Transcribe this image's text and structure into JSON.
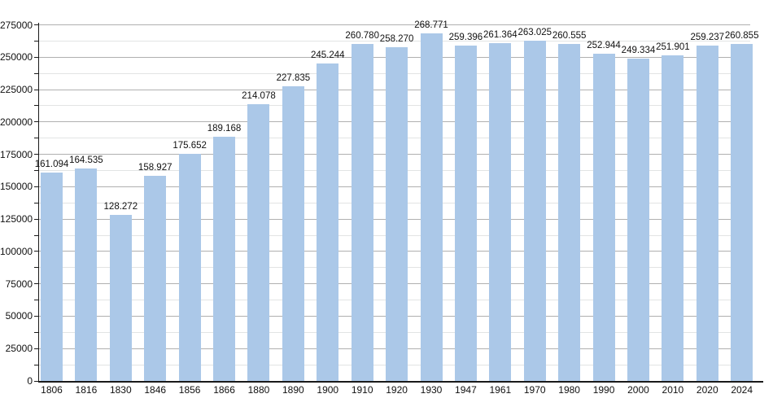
{
  "chart_data": {
    "type": "bar",
    "title": "",
    "xlabel": "",
    "ylabel": "",
    "legend": "none",
    "grid": "horizontal, major and minor",
    "ylim": [
      0,
      275000
    ],
    "y_major_step": 25000,
    "y_minor_step": 12500,
    "y_tick_labels": [
      "0",
      "25000",
      "50000",
      "75000",
      "100000",
      "125000",
      "150000",
      "175000",
      "200000",
      "225000",
      "250000",
      "275000"
    ],
    "categories": [
      "1806",
      "1816",
      "1830",
      "1846",
      "1856",
      "1866",
      "1880",
      "1890",
      "1900",
      "1910",
      "1920",
      "1930",
      "1947",
      "1961",
      "1970",
      "1980",
      "1990",
      "2000",
      "2010",
      "2020",
      "2024"
    ],
    "values": [
      161094,
      164535,
      128272,
      158927,
      175652,
      189168,
      214078,
      227835,
      245244,
      260780,
      258270,
      268771,
      259396,
      261364,
      263025,
      260555,
      252944,
      249334,
      251901,
      259237,
      260855
    ],
    "value_labels": [
      "161.094",
      "164.535",
      "128.272",
      "158.927",
      "175.652",
      "189.168",
      "214.078",
      "227.835",
      "245.244",
      "260.780",
      "258.270",
      "268.771",
      "259.396",
      "261.364",
      "263.025",
      "260.555",
      "252.944",
      "249.334",
      "251.901",
      "259.237",
      "260.855"
    ],
    "colors": {
      "bar": "#abc8e8",
      "major_grid": "#b0b0b0",
      "minor_grid": "#e2e4e4",
      "axis": "#1a1a1a",
      "text": "#111111",
      "background": "#ffffff"
    }
  }
}
